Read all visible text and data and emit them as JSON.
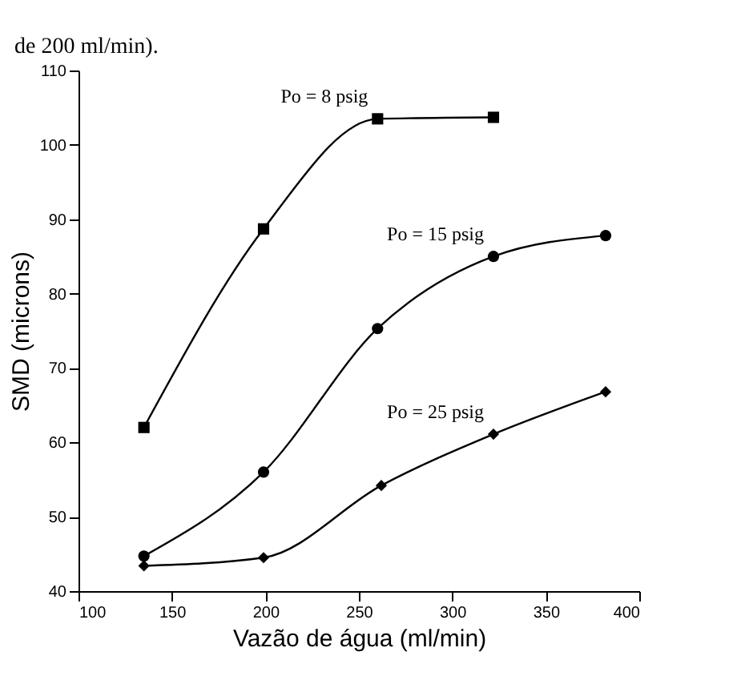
{
  "chart_data": {
    "type": "line",
    "xlabel": "Vazão de água (ml/min)",
    "ylabel": "SMD (microns)",
    "annotations": [
      "de 200 ml/min)."
    ],
    "xlim": [
      100,
      400
    ],
    "xticks": [
      100,
      150,
      200,
      250,
      300,
      350,
      400
    ],
    "ylim": [
      40,
      110
    ],
    "yticks": [
      40,
      50,
      60,
      70,
      80,
      90,
      100,
      110
    ],
    "grid": false,
    "line_style": "solid",
    "series": [
      {
        "name": "Po = 8 psig",
        "color": "#000000",
        "marker": "square",
        "x": [
          135,
          199,
          260,
          322
        ],
        "values": [
          62,
          88.7,
          103.5,
          103.7
        ]
      },
      {
        "name": "Po = 15 psig",
        "color": "#000000",
        "marker": "circle",
        "x": [
          135,
          199,
          260,
          322,
          382
        ],
        "values": [
          44.7,
          56,
          75.3,
          85,
          87.8
        ]
      },
      {
        "name": "Po = 25 psig",
        "color": "#000000",
        "marker": "diamond",
        "x": [
          135,
          199,
          262,
          322,
          382
        ],
        "values": [
          43.4,
          44.5,
          54.2,
          61.1,
          66.8
        ]
      }
    ]
  }
}
